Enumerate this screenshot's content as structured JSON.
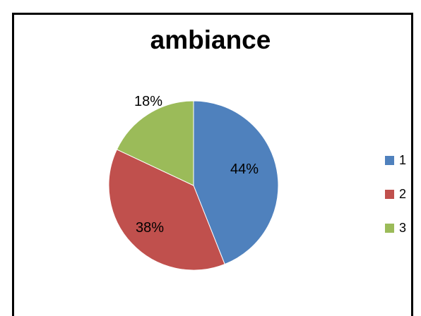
{
  "chart_data": {
    "type": "pie",
    "title": "ambiance",
    "categories": [
      "1",
      "2",
      "3"
    ],
    "values": [
      44,
      38,
      18
    ],
    "labels": [
      "44%",
      "38%",
      "18%"
    ],
    "colors": [
      "#4F81BD",
      "#C0504D",
      "#9BBB59"
    ],
    "legend_position": "right"
  }
}
